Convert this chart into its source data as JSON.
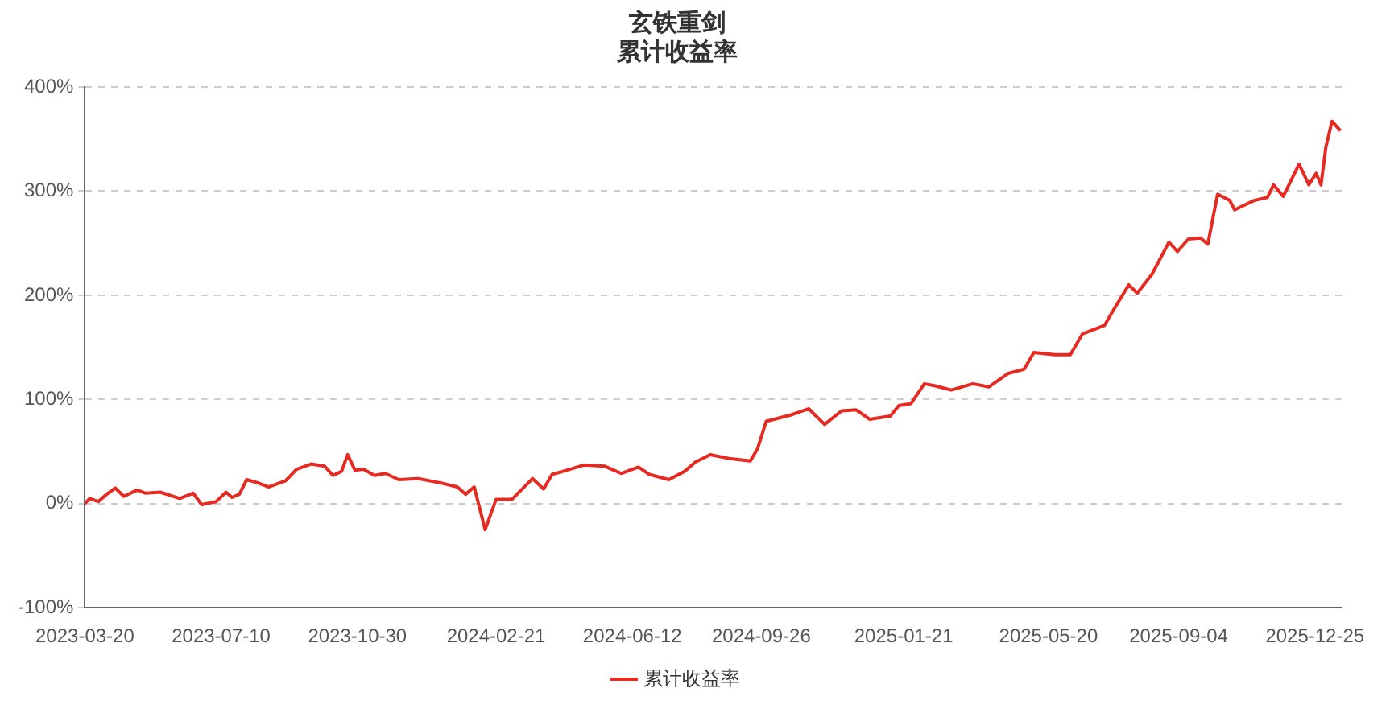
{
  "chart_data": {
    "type": "line",
    "title": "玄铁重剑",
    "subtitle": "累计收益率",
    "x": [
      "2023-03-20",
      "2023-03-24",
      "2023-03-31",
      "2023-04-07",
      "2023-04-14",
      "2023-04-21",
      "2023-05-02",
      "2023-05-09",
      "2023-05-21",
      "2023-06-06",
      "2023-06-17",
      "2023-06-24",
      "2023-07-06",
      "2023-07-14",
      "2023-07-19",
      "2023-07-25",
      "2023-07-31",
      "2023-08-09",
      "2023-08-18",
      "2023-09-01",
      "2023-09-10",
      "2023-09-22",
      "2023-10-03",
      "2023-10-10",
      "2023-10-17",
      "2023-10-22",
      "2023-10-28",
      "2023-11-04",
      "2023-11-13",
      "2023-11-22",
      "2023-12-03",
      "2023-12-19",
      "2024-01-06",
      "2024-01-20",
      "2024-01-27",
      "2024-02-03",
      "2024-02-12",
      "2024-02-21",
      "2024-03-05",
      "2024-03-22",
      "2024-03-31",
      "2024-04-07",
      "2024-04-19",
      "2024-05-03",
      "2024-05-20",
      "2024-06-03",
      "2024-06-17",
      "2024-06-26",
      "2024-07-12",
      "2024-07-25",
      "2024-08-03",
      "2024-08-15",
      "2024-09-01",
      "2024-09-17",
      "2024-09-23",
      "2024-09-30",
      "2024-10-20",
      "2024-11-04",
      "2024-11-17",
      "2024-12-01",
      "2024-12-13",
      "2024-12-24",
      "2025-01-10",
      "2025-01-17",
      "2025-01-27",
      "2025-02-07",
      "2025-02-16",
      "2025-03-01",
      "2025-03-19",
      "2025-04-01",
      "2025-04-17",
      "2025-04-30",
      "2025-05-08",
      "2025-05-25",
      "2025-06-07",
      "2025-06-17",
      "2025-07-05",
      "2025-07-13",
      "2025-07-25",
      "2025-08-01",
      "2025-08-13",
      "2025-08-27",
      "2025-09-03",
      "2025-09-12",
      "2025-09-22",
      "2025-09-28",
      "2025-10-06",
      "2025-10-16",
      "2025-10-20",
      "2025-11-05",
      "2025-11-16",
      "2025-11-21",
      "2025-11-29",
      "2025-12-12",
      "2025-12-20",
      "2025-12-26",
      "2025-12-30",
      "2026-01-03",
      "2026-01-08",
      "2026-01-15"
    ],
    "series": [
      {
        "name": "累计收益率",
        "color": "#e62a22",
        "values": [
          0,
          5,
          2,
          9,
          15,
          7,
          13,
          10,
          11,
          5,
          10,
          -1,
          2,
          11,
          6,
          9,
          23,
          20,
          16,
          22,
          33,
          38,
          36,
          27,
          31,
          47,
          32,
          33,
          27,
          29,
          23,
          24,
          20,
          16,
          9,
          16,
          -25,
          4,
          4,
          24,
          14,
          28,
          32,
          37,
          36,
          29,
          35,
          28,
          23,
          31,
          40,
          47,
          43,
          41,
          53,
          79,
          85,
          91,
          76,
          89,
          90,
          81,
          84,
          94,
          96,
          115,
          113,
          109,
          115,
          112,
          125,
          129,
          145,
          143,
          143,
          163,
          171,
          187,
          210,
          202,
          220,
          251,
          242,
          254,
          255,
          249,
          297,
          291,
          282,
          291,
          294,
          306,
          295,
          326,
          306,
          317,
          306,
          342,
          367,
          358
        ]
      }
    ],
    "xlim": [
      "2023-03-20",
      "2026-01-16"
    ],
    "xticks": [
      "2023-03-20",
      "2023-07-10",
      "2023-10-30",
      "2024-02-21",
      "2024-06-12",
      "2024-09-26",
      "2025-01-21",
      "2025-05-20",
      "2025-09-04",
      "2025-12-25"
    ],
    "ylim": [
      -100,
      400
    ],
    "yticks": [
      {
        "value": -100,
        "label": "-100%"
      },
      {
        "value": 0,
        "label": "0%"
      },
      {
        "value": 100,
        "label": "100%"
      },
      {
        "value": 200,
        "label": "200%"
      },
      {
        "value": 300,
        "label": "300%"
      },
      {
        "value": 400,
        "label": "400%"
      }
    ],
    "grid": "y",
    "legend": "bottom",
    "line_style": "solid"
  }
}
